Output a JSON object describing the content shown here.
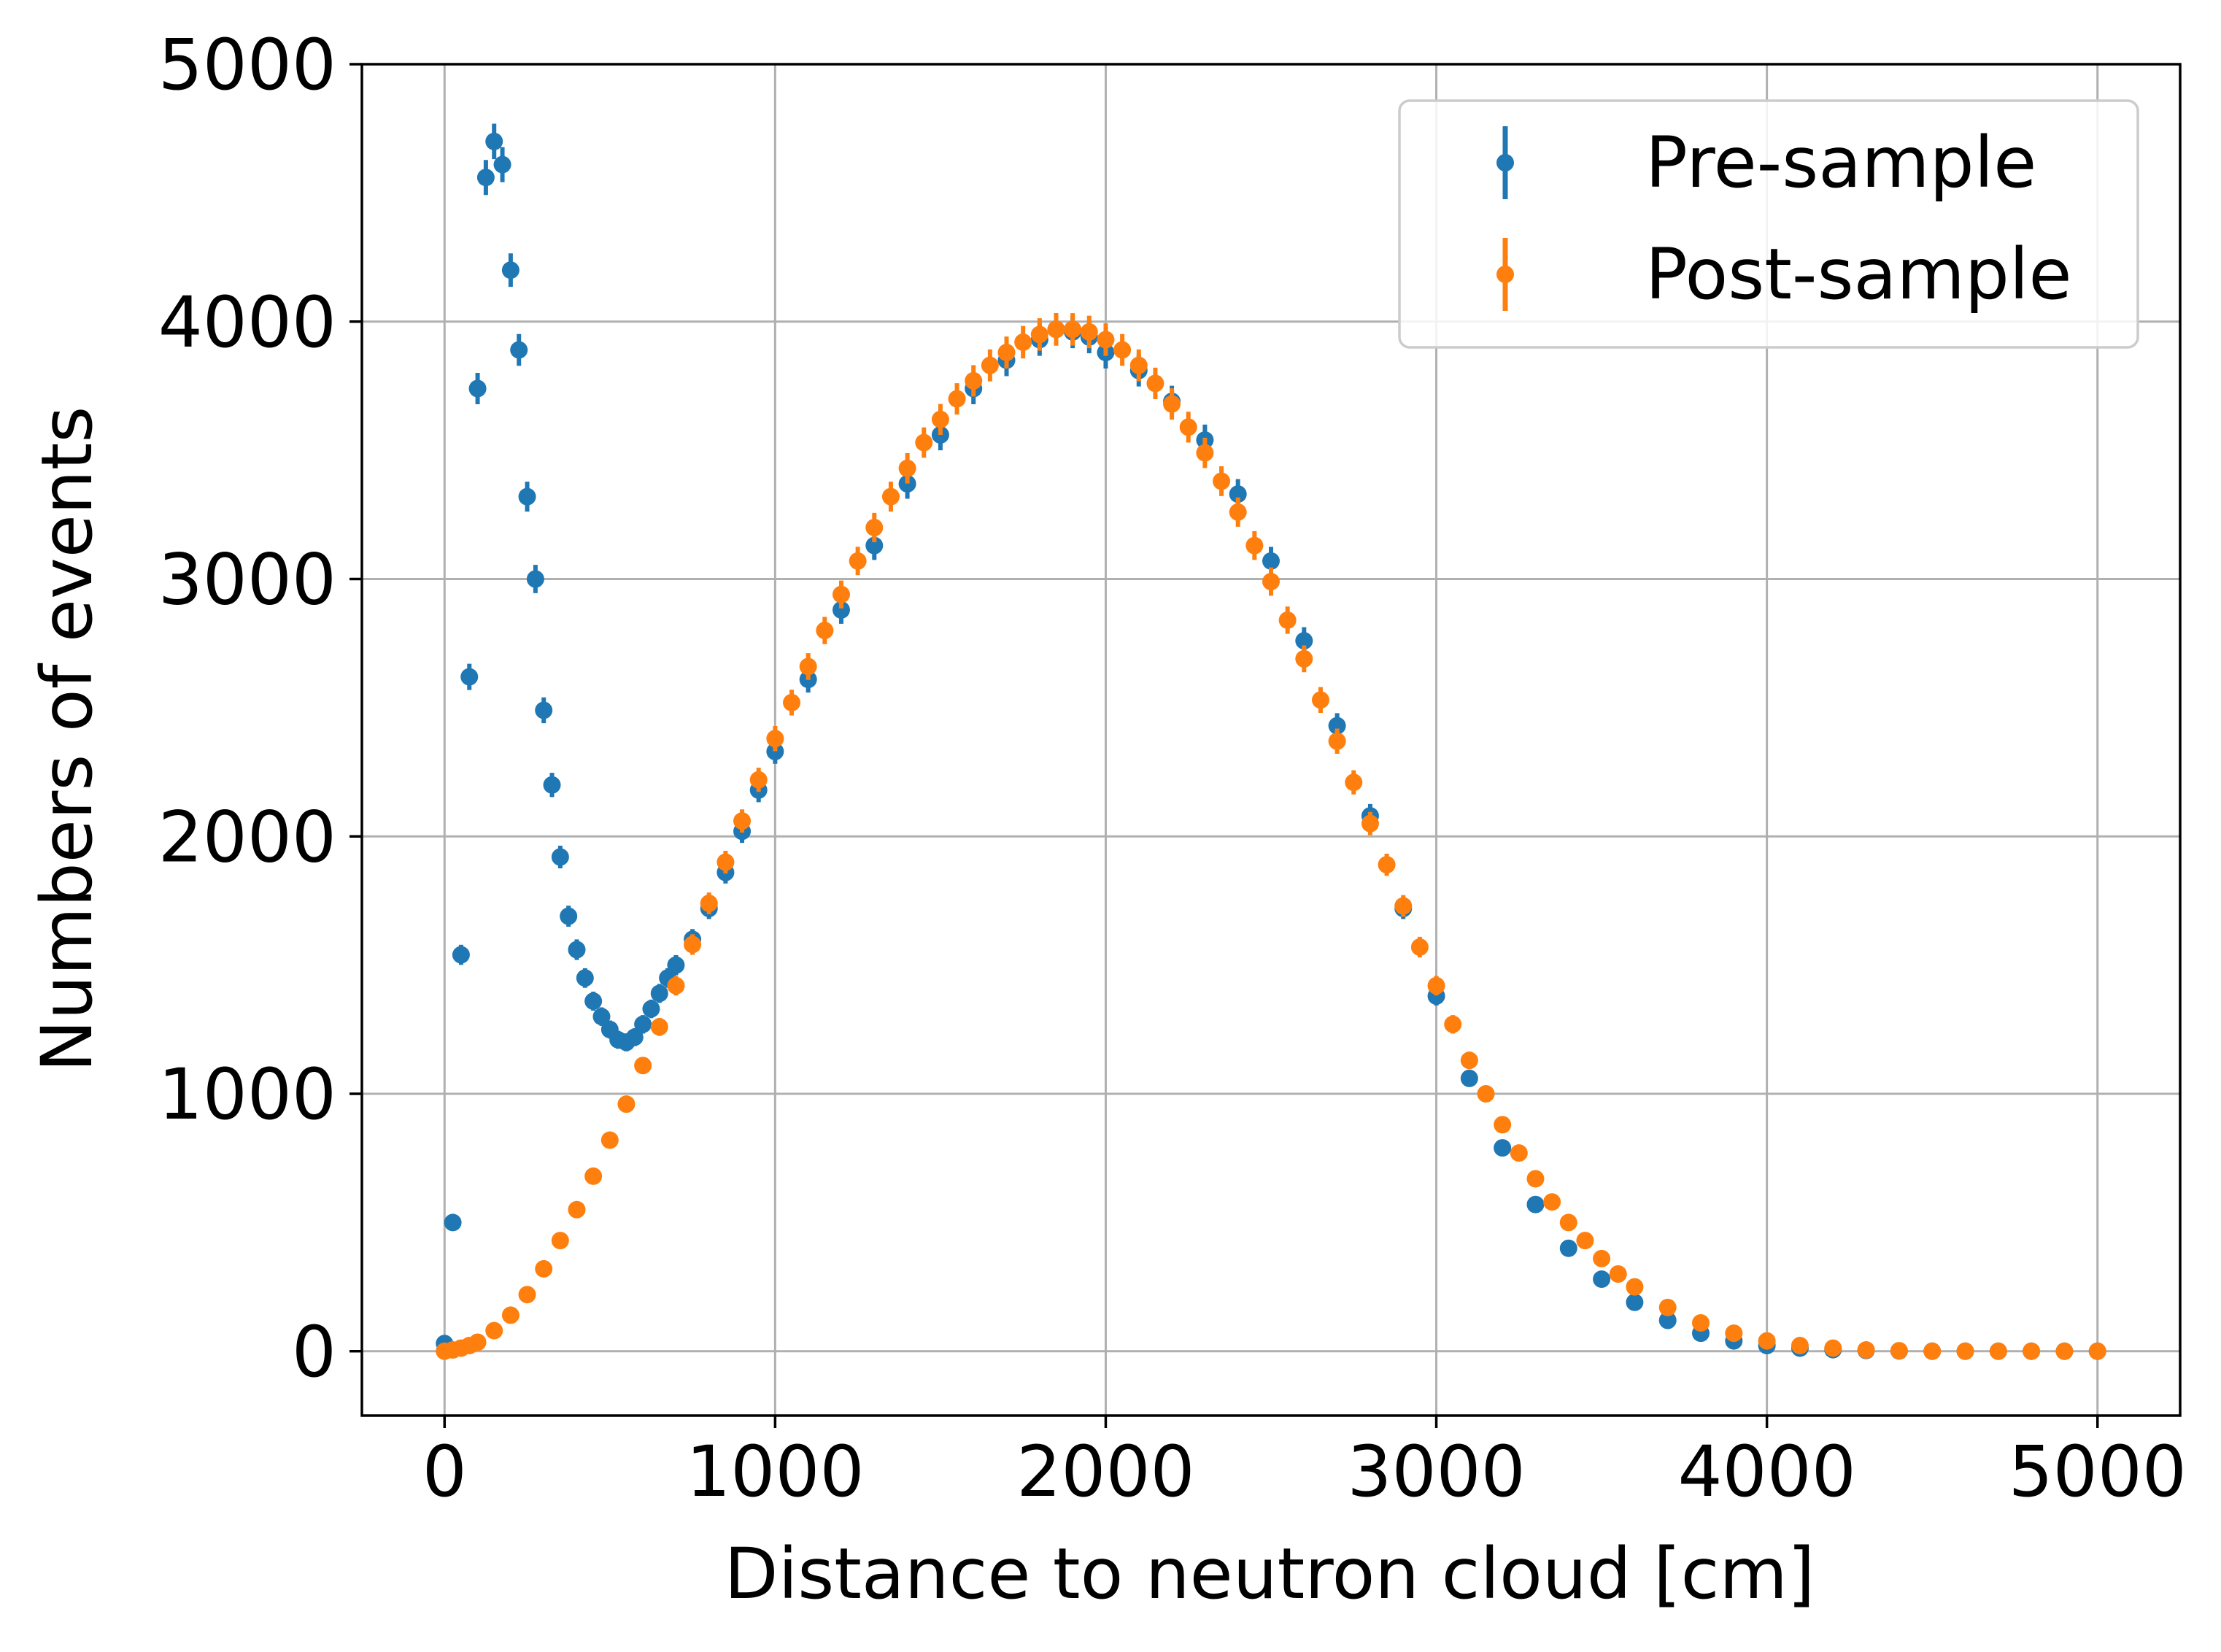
{
  "chart_data": {
    "type": "scatter",
    "title": "",
    "xlabel": "Distance to neutron cloud [cm]",
    "ylabel": "Numbers of events",
    "xlim": [
      -250,
      5250
    ],
    "ylim": [
      -250,
      5000
    ],
    "xticks": [
      0,
      1000,
      2000,
      3000,
      4000,
      5000
    ],
    "xtick_labels": [
      "0",
      "1000",
      "2000",
      "3000",
      "4000",
      "5000"
    ],
    "yticks": [
      0,
      1000,
      2000,
      3000,
      4000,
      5000
    ],
    "ytick_labels": [
      "0",
      "1000",
      "2000",
      "3000",
      "4000",
      "5000"
    ],
    "grid": true,
    "legend_position": "top-right",
    "error_bars": true,
    "series": [
      {
        "name": "Pre-sample",
        "color": "#1f77b4",
        "x": [
          0,
          25,
          50,
          75,
          100,
          125,
          150,
          175,
          200,
          225,
          250,
          275,
          300,
          325,
          350,
          375,
          400,
          425,
          450,
          475,
          500,
          525,
          550,
          575,
          600,
          625,
          650,
          675,
          700,
          750,
          800,
          850,
          900,
          950,
          1000,
          1100,
          1200,
          1300,
          1400,
          1500,
          1600,
          1700,
          1800,
          1850,
          1900,
          1950,
          2000,
          2100,
          2200,
          2300,
          2400,
          2500,
          2600,
          2700,
          2800,
          2900,
          3000,
          3100,
          3200,
          3300,
          3400,
          3500,
          3600,
          3700,
          3800,
          3900,
          4000,
          4100,
          4200,
          4300,
          4400,
          4500,
          4600,
          4700,
          4800,
          4900,
          5000
        ],
        "y": [
          30,
          500,
          1540,
          2620,
          3740,
          4560,
          4700,
          4610,
          4200,
          3890,
          3320,
          3000,
          2490,
          2200,
          1920,
          1690,
          1560,
          1450,
          1360,
          1300,
          1250,
          1210,
          1200,
          1220,
          1270,
          1330,
          1390,
          1450,
          1500,
          1600,
          1720,
          1860,
          2020,
          2180,
          2330,
          2610,
          2880,
          3130,
          3370,
          3560,
          3740,
          3850,
          3930,
          3970,
          3960,
          3940,
          3880,
          3810,
          3690,
          3540,
          3330,
          3070,
          2760,
          2430,
          2080,
          1720,
          1380,
          1060,
          790,
          570,
          400,
          280,
          190,
          120,
          70,
          40,
          22,
          12,
          6,
          3,
          1,
          0,
          0,
          0,
          0,
          0,
          0
        ],
        "yerr": [
          6,
          22,
          39,
          51,
          61,
          68,
          69,
          68,
          65,
          62,
          58,
          55,
          50,
          47,
          44,
          41,
          40,
          38,
          37,
          36,
          35,
          35,
          35,
          35,
          36,
          36,
          37,
          38,
          39,
          40,
          41,
          43,
          45,
          47,
          48,
          51,
          54,
          56,
          58,
          60,
          61,
          62,
          63,
          63,
          63,
          63,
          62,
          62,
          61,
          60,
          58,
          55,
          53,
          49,
          46,
          41,
          37,
          33,
          28,
          24,
          20,
          17,
          14,
          11,
          8,
          6,
          5,
          3,
          2,
          2,
          1,
          0,
          0,
          0,
          0,
          0,
          0
        ]
      },
      {
        "name": "Post-sample",
        "color": "#ff7f0e",
        "x": [
          0,
          25,
          50,
          75,
          100,
          150,
          200,
          250,
          300,
          350,
          400,
          450,
          500,
          550,
          600,
          650,
          700,
          750,
          800,
          850,
          900,
          950,
          1000,
          1050,
          1100,
          1150,
          1200,
          1250,
          1300,
          1350,
          1400,
          1450,
          1500,
          1550,
          1600,
          1650,
          1700,
          1750,
          1800,
          1850,
          1900,
          1950,
          2000,
          2050,
          2100,
          2150,
          2200,
          2250,
          2300,
          2350,
          2400,
          2450,
          2500,
          2550,
          2600,
          2650,
          2700,
          2750,
          2800,
          2850,
          2900,
          2950,
          3000,
          3050,
          3100,
          3150,
          3200,
          3250,
          3300,
          3350,
          3400,
          3450,
          3500,
          3550,
          3600,
          3700,
          3800,
          3900,
          4000,
          4100,
          4200,
          4300,
          4400,
          4500,
          4600,
          4700,
          4800,
          4900,
          5000
        ],
        "y": [
          0,
          5,
          12,
          22,
          35,
          80,
          140,
          220,
          320,
          430,
          550,
          680,
          820,
          960,
          1110,
          1260,
          1420,
          1580,
          1740,
          1900,
          2060,
          2220,
          2380,
          2520,
          2660,
          2800,
          2940,
          3070,
          3200,
          3320,
          3430,
          3530,
          3620,
          3700,
          3770,
          3830,
          3880,
          3920,
          3950,
          3970,
          3970,
          3960,
          3930,
          3890,
          3830,
          3760,
          3680,
          3590,
          3490,
          3380,
          3260,
          3130,
          2990,
          2840,
          2690,
          2530,
          2370,
          2210,
          2050,
          1890,
          1730,
          1570,
          1420,
          1270,
          1130,
          1000,
          880,
          770,
          670,
          580,
          500,
          430,
          360,
          300,
          250,
          170,
          110,
          70,
          40,
          22,
          12,
          5,
          2,
          0,
          0,
          0,
          0,
          0,
          0
        ],
        "yerr": [
          0,
          2,
          3,
          5,
          6,
          9,
          12,
          15,
          18,
          21,
          23,
          26,
          29,
          31,
          33,
          35,
          38,
          40,
          42,
          44,
          45,
          47,
          49,
          50,
          52,
          53,
          54,
          55,
          57,
          58,
          59,
          59,
          60,
          61,
          61,
          62,
          62,
          63,
          63,
          63,
          63,
          63,
          63,
          62,
          62,
          61,
          61,
          60,
          59,
          58,
          57,
          56,
          55,
          53,
          52,
          50,
          49,
          47,
          45,
          43,
          42,
          40,
          38,
          36,
          34,
          32,
          30,
          28,
          26,
          24,
          22,
          21,
          19,
          17,
          16,
          13,
          10,
          8,
          6,
          5,
          3,
          2,
          1,
          0,
          0,
          0,
          0,
          0,
          0
        ]
      }
    ]
  }
}
